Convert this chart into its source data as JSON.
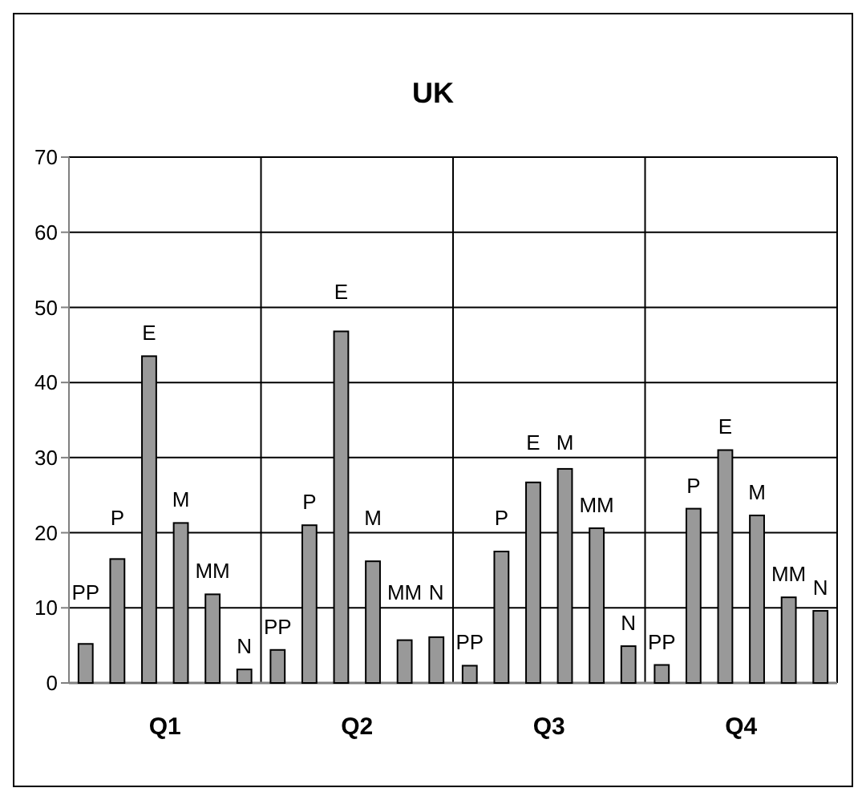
{
  "chart_data": {
    "type": "bar",
    "title": "UK",
    "categories": [
      "Q1",
      "Q2",
      "Q3",
      "Q4"
    ],
    "series": [
      {
        "name": "PP",
        "color": "#999999",
        "values": [
          5.2,
          4.4,
          2.3,
          2.4
        ]
      },
      {
        "name": "P",
        "color": "#999999",
        "values": [
          16.5,
          21,
          17.5,
          23.2
        ]
      },
      {
        "name": "E",
        "color": "#999999",
        "values": [
          43.5,
          46.8,
          26.7,
          31
        ]
      },
      {
        "name": "M",
        "color": "#999999",
        "values": [
          21.3,
          16.2,
          28.5,
          22.3
        ]
      },
      {
        "name": "MM",
        "color": "#999999",
        "values": [
          11.8,
          5.7,
          20.6,
          11.4
        ]
      },
      {
        "name": "N",
        "color": "#999999",
        "values": [
          1.8,
          6.1,
          4.9,
          9.6
        ]
      }
    ],
    "ylim": [
      0,
      70
    ],
    "yticks": [
      0,
      10,
      20,
      30,
      40,
      50,
      60,
      70
    ],
    "grid": true
  }
}
